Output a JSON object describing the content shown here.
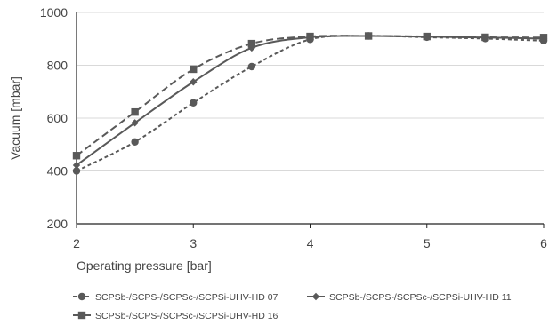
{
  "chart_data": {
    "type": "line",
    "xlabel": "Operating pressure [bar]",
    "ylabel": "Vacuum [mbar]",
    "xlim": [
      2,
      6
    ],
    "ylim": [
      200,
      1000
    ],
    "x_ticks": [
      "2",
      "3",
      "4",
      "5",
      "6"
    ],
    "y_ticks": [
      "200",
      "400",
      "600",
      "800",
      "1000"
    ],
    "grid": "horizontal",
    "legend_position": "bottom",
    "colors": {
      "series": "#595959",
      "grid": "#d9d9d9",
      "axis": "#222222"
    },
    "series": [
      {
        "name": "SCPSb-/SCPS-/SCPSc-/SCPSi-UHV-HD 07",
        "marker": "circle",
        "dash": "short-dash",
        "x": [
          2,
          2.5,
          3,
          3.5,
          4,
          4.5,
          5,
          5.5,
          6
        ],
        "y": [
          400,
          510,
          658,
          795,
          898,
          911,
          906,
          901,
          893
        ]
      },
      {
        "name": "SCPSb-/SCPS-/SCPSc-/SCPSi-UHV-HD 11",
        "marker": "diamond",
        "dash": "solid",
        "x": [
          2,
          2.5,
          3,
          3.5,
          4,
          4.5,
          5,
          5.5,
          6
        ],
        "y": [
          422,
          582,
          737,
          866,
          906,
          911,
          908,
          905,
          901
        ]
      },
      {
        "name": "SCPSb-/SCPS-/SCPSc-/SCPSi-UHV-HD 16",
        "marker": "square",
        "dash": "long-dash",
        "x": [
          2,
          2.5,
          3,
          3.5,
          4,
          4.5,
          5,
          5.5,
          6
        ],
        "y": [
          458,
          623,
          785,
          882,
          909,
          911,
          909,
          906,
          905
        ]
      }
    ]
  }
}
